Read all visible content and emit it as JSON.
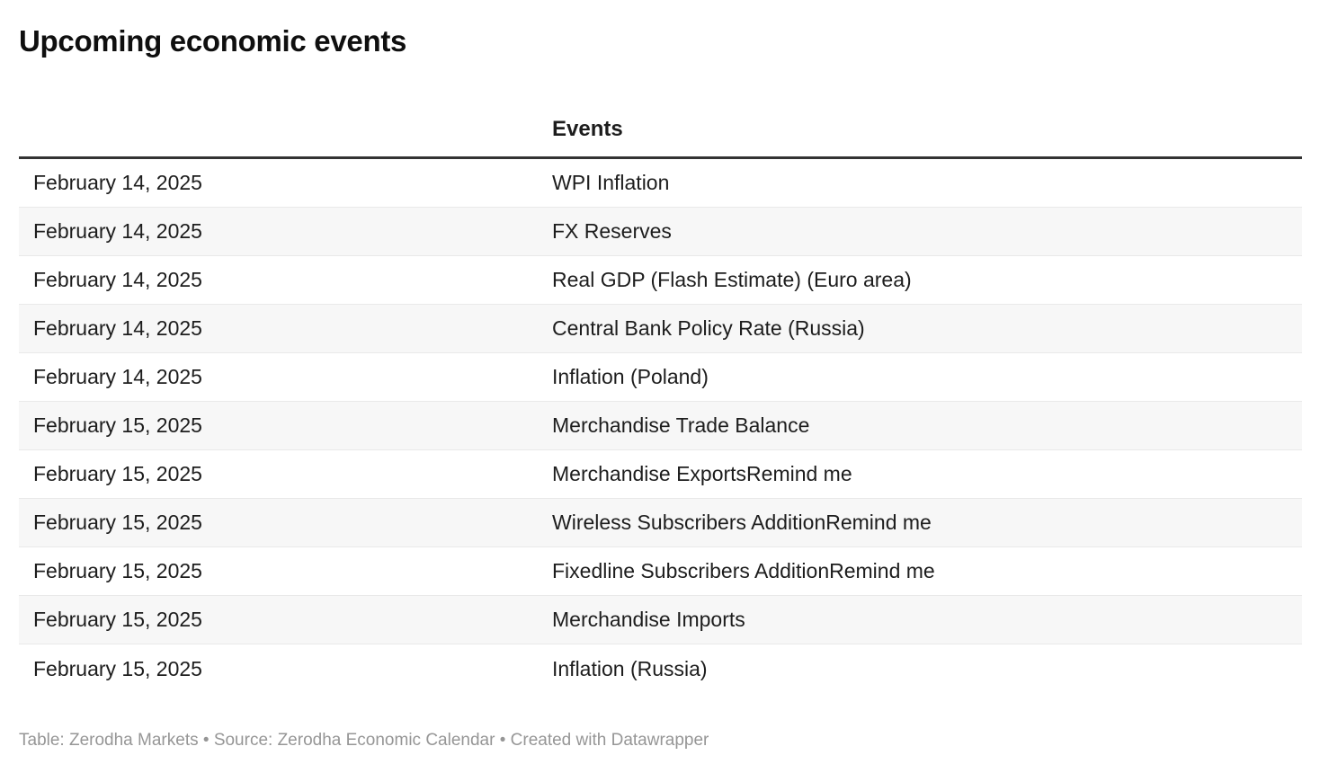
{
  "chart_data": {
    "type": "table",
    "title": "Upcoming economic events",
    "columns": [
      "",
      "Events"
    ],
    "rows": [
      [
        "February 14, 2025",
        "WPI Inflation"
      ],
      [
        "February 14, 2025",
        "FX Reserves"
      ],
      [
        "February 14, 2025",
        "Real GDP (Flash Estimate) (Euro area)"
      ],
      [
        "February 14, 2025",
        "Central Bank Policy Rate (Russia)"
      ],
      [
        "February 14, 2025",
        "Inflation (Poland)"
      ],
      [
        "February 15, 2025",
        "Merchandise Trade Balance"
      ],
      [
        "February 15, 2025",
        "Merchandise ExportsRemind me"
      ],
      [
        "February 15, 2025",
        "Wireless Subscribers AdditionRemind me"
      ],
      [
        "February 15, 2025",
        "Fixedline Subscribers AdditionRemind me"
      ],
      [
        "February 15, 2025",
        "Merchandise Imports"
      ],
      [
        "February 15, 2025",
        "Inflation (Russia)"
      ]
    ],
    "layout": {
      "striped_rows": true,
      "header_rule_color": "#333333",
      "row_divider_color": "#e9e9e9",
      "stripe_color": "#f7f7f7"
    }
  },
  "footer": {
    "table_prefix": "Table: ",
    "table_credit": "Zerodha Markets",
    "source_separator": " • Source: ",
    "source_name": "Zerodha Economic Calendar",
    "created_separator": " • ",
    "created_with": "Created with Datawrapper"
  },
  "colors": {
    "title_text": "#0f0f0f",
    "cell_text": "#1d1d1d",
    "footer_text": "#969696",
    "header_rule": "#333333",
    "row_divider": "#e9e9e9",
    "stripe": "#f7f7f7",
    "background": "#ffffff"
  }
}
